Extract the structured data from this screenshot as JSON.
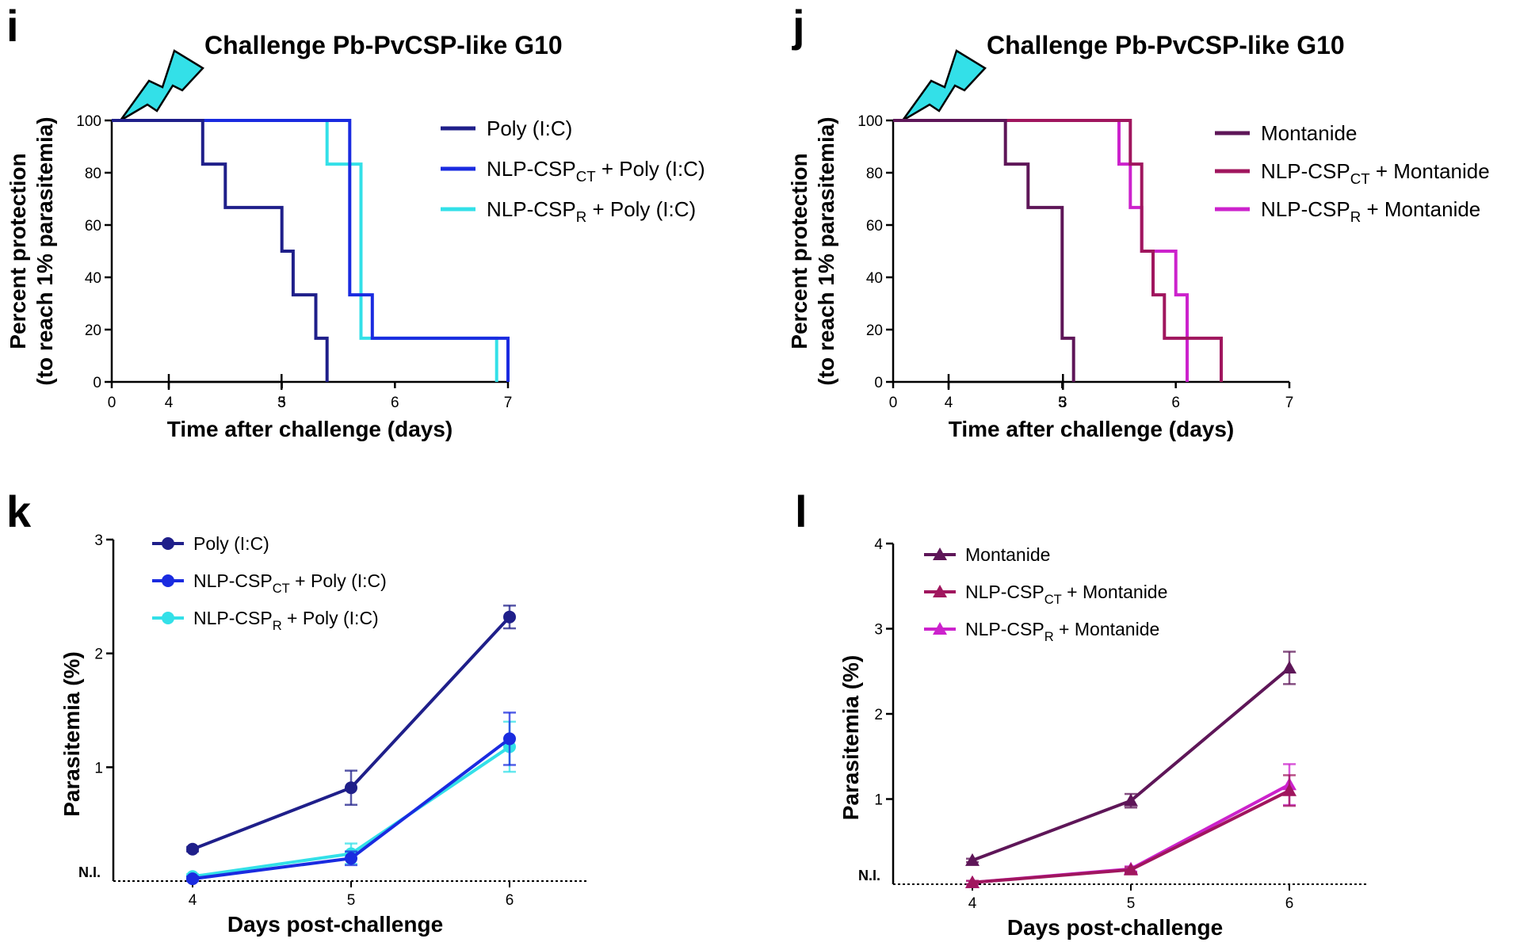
{
  "colors": {
    "poly_ic": "#1f1f8a",
    "nlp_ct_poly": "#1a2be0",
    "nlp_r_poly": "#33e0e8",
    "montanide": "#5e1658",
    "nlp_ct_mont": "#a0165e",
    "nlp_r_mont": "#cc22cc",
    "bolt": "#33e0e8"
  },
  "chart_data": [
    {
      "panel": "i",
      "type": "line",
      "subtype": "kaplan-meier",
      "title": "Challenge Pb-PvCSP-like G10",
      "xlabel": "Time after challenge (days)",
      "ylabel_line1": "Percent protection",
      "ylabel_line2": "(to reach 1% parasitemia)",
      "xlim": [
        0,
        7
      ],
      "x_break": [
        3,
        4
      ],
      "ylim": [
        0,
        100
      ],
      "xticks": [
        "0",
        "3",
        "4",
        "5",
        "6",
        "7"
      ],
      "yticks": [
        "0",
        "20",
        "40",
        "60",
        "80",
        "100"
      ],
      "series": [
        {
          "name": "Poly (I:C)",
          "name_main": "Poly (I:C)",
          "name_sub": "",
          "name_tail": "",
          "color_key": "poly_ic",
          "steps": [
            [
              0,
              100
            ],
            [
              4.3,
              100
            ],
            [
              4.3,
              83.3
            ],
            [
              4.5,
              83.3
            ],
            [
              4.5,
              66.7
            ],
            [
              5.0,
              66.7
            ],
            [
              5.0,
              50
            ],
            [
              5.1,
              50
            ],
            [
              5.1,
              33.3
            ],
            [
              5.3,
              33.3
            ],
            [
              5.3,
              16.7
            ],
            [
              5.4,
              16.7
            ],
            [
              5.4,
              0
            ]
          ]
        },
        {
          "name": "NLP-CSPCT + Poly (I:C)",
          "name_main": "NLP-CSP",
          "name_sub": "CT",
          "name_tail": " + Poly (I:C)",
          "color_key": "nlp_ct_poly",
          "steps": [
            [
              0,
              100
            ],
            [
              5.6,
              100
            ],
            [
              5.6,
              33.3
            ],
            [
              5.8,
              33.3
            ],
            [
              5.8,
              16.7
            ],
            [
              7.0,
              16.7
            ],
            [
              7.0,
              0
            ]
          ]
        },
        {
          "name": "NLP-CSPR + Poly (I:C)",
          "name_main": "NLP-CSP",
          "name_sub": "R",
          "name_tail": " + Poly (I:C)",
          "color_key": "nlp_r_poly",
          "steps": [
            [
              0,
              100
            ],
            [
              5.4,
              100
            ],
            [
              5.4,
              83.3
            ],
            [
              5.7,
              83.3
            ],
            [
              5.7,
              16.7
            ],
            [
              6.9,
              16.7
            ],
            [
              6.9,
              0
            ]
          ]
        }
      ]
    },
    {
      "panel": "j",
      "type": "line",
      "subtype": "kaplan-meier",
      "title": "Challenge Pb-PvCSP-like G10",
      "xlabel": "Time after challenge (days)",
      "ylabel_line1": "Percent protection",
      "ylabel_line2": "(to reach 1% parasitemia)",
      "xlim": [
        0,
        7
      ],
      "x_break": [
        3,
        4
      ],
      "ylim": [
        0,
        100
      ],
      "xticks": [
        "0",
        "3",
        "4",
        "5",
        "6",
        "7"
      ],
      "yticks": [
        "0",
        "20",
        "40",
        "60",
        "80",
        "100"
      ],
      "series": [
        {
          "name": "Montanide",
          "name_main": "Montanide",
          "name_sub": "",
          "name_tail": "",
          "color_key": "montanide",
          "steps": [
            [
              0,
              100
            ],
            [
              4.5,
              100
            ],
            [
              4.5,
              83.3
            ],
            [
              4.7,
              83.3
            ],
            [
              4.7,
              66.7
            ],
            [
              5.0,
              66.7
            ],
            [
              5.0,
              16.7
            ],
            [
              5.1,
              16.7
            ],
            [
              5.1,
              0
            ]
          ]
        },
        {
          "name": "NLP-CSPCT + Montanide",
          "name_main": "NLP-CSP",
          "name_sub": "CT",
          "name_tail": " + Montanide",
          "color_key": "nlp_ct_mont",
          "steps": [
            [
              0,
              100
            ],
            [
              5.6,
              100
            ],
            [
              5.6,
              83.3
            ],
            [
              5.7,
              83.3
            ],
            [
              5.7,
              50
            ],
            [
              5.8,
              50
            ],
            [
              5.8,
              33.3
            ],
            [
              5.9,
              33.3
            ],
            [
              5.9,
              16.7
            ],
            [
              6.4,
              16.7
            ],
            [
              6.4,
              0
            ]
          ]
        },
        {
          "name": "NLP-CSPR + Montanide",
          "name_main": "NLP-CSP",
          "name_sub": "R",
          "name_tail": " + Montanide",
          "color_key": "nlp_r_mont",
          "steps": [
            [
              0,
              100
            ],
            [
              5.5,
              100
            ],
            [
              5.5,
              83.3
            ],
            [
              5.6,
              83.3
            ],
            [
              5.6,
              66.7
            ],
            [
              5.7,
              66.7
            ],
            [
              5.7,
              50
            ],
            [
              6.0,
              50
            ],
            [
              6.0,
              33.3
            ],
            [
              6.1,
              33.3
            ],
            [
              6.1,
              0
            ]
          ]
        }
      ]
    },
    {
      "panel": "k",
      "type": "line",
      "xlabel": "Days post-challenge",
      "ylabel": "Parasitemia (%)",
      "xlim": [
        3.5,
        6.5
      ],
      "ylim": [
        0,
        3
      ],
      "xticks": [
        "4",
        "5",
        "6"
      ],
      "yticks": [
        "1",
        "2",
        "3"
      ],
      "ni_label": "N.I.",
      "marker": "circle",
      "x": [
        4,
        5,
        6
      ],
      "series": [
        {
          "name": "Poly (I:C)",
          "name_main": "Poly (I:C)",
          "name_sub": "",
          "name_tail": "",
          "color_key": "poly_ic",
          "values": [
            0.28,
            0.82,
            2.32
          ],
          "errors": [
            0.02,
            0.15,
            0.1
          ]
        },
        {
          "name": "NLP-CSPCT + Poly (I:C)",
          "name_main": "NLP-CSP",
          "name_sub": "CT",
          "name_tail": " + Poly (I:C)",
          "color_key": "nlp_ct_poly",
          "values": [
            0.02,
            0.2,
            1.25
          ],
          "errors": [
            0.02,
            0.06,
            0.23
          ]
        },
        {
          "name": "NLP-CSPR + Poly (I:C)",
          "name_main": "NLP-CSP",
          "name_sub": "R",
          "name_tail": " + Poly (I:C)",
          "color_key": "nlp_r_poly",
          "values": [
            0.04,
            0.24,
            1.18
          ],
          "errors": [
            0.02,
            0.09,
            0.22
          ]
        }
      ]
    },
    {
      "panel": "l",
      "type": "line",
      "xlabel": "Days post-challenge",
      "ylabel": "Parasitemia (%)",
      "xlim": [
        3.5,
        6.5
      ],
      "ylim": [
        0,
        4
      ],
      "xticks": [
        "4",
        "5",
        "6"
      ],
      "yticks": [
        "1",
        "2",
        "3",
        "4"
      ],
      "ni_label": "N.I.",
      "marker": "triangle",
      "x": [
        4,
        5,
        6
      ],
      "series": [
        {
          "name": "Montanide",
          "name_main": "Montanide",
          "name_sub": "",
          "name_tail": "",
          "color_key": "montanide",
          "values": [
            0.28,
            0.98,
            2.54
          ],
          "errors": [
            0.02,
            0.08,
            0.19
          ]
        },
        {
          "name": "NLP-CSPCT + Montanide",
          "name_main": "NLP-CSP",
          "name_sub": "CT",
          "name_tail": " + Montanide",
          "color_key": "nlp_ct_mont",
          "values": [
            0.02,
            0.17,
            1.1
          ],
          "errors": [
            0.02,
            0.03,
            0.18
          ]
        },
        {
          "name": "NLP-CSPR + Montanide",
          "name_main": "NLP-CSP",
          "name_sub": "R",
          "name_tail": " + Montanide",
          "color_key": "nlp_r_mont",
          "values": [
            0.02,
            0.18,
            1.17
          ],
          "errors": [
            0.02,
            0.03,
            0.24
          ]
        }
      ]
    }
  ]
}
